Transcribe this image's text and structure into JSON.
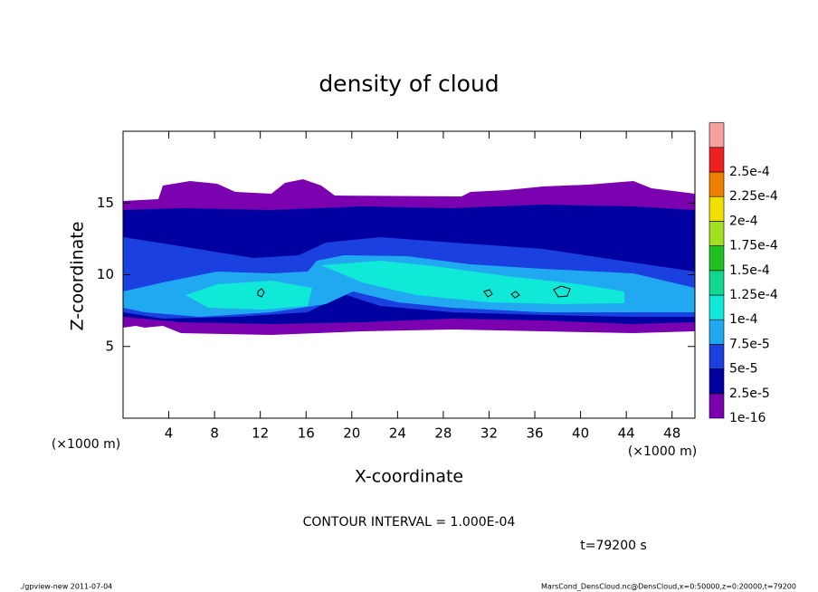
{
  "chart_data": {
    "type": "contour",
    "title": "density of cloud",
    "xlabel": "X-coordinate",
    "ylabel": "Z-coordinate",
    "xunit": "(×1000 m)",
    "xunit2": "(×1000 m)",
    "xlim": [
      0,
      50
    ],
    "xticks": [
      4,
      8,
      12,
      16,
      20,
      24,
      28,
      32,
      36,
      40,
      44,
      48
    ],
    "ylim": [
      0,
      20
    ],
    "yticks": [
      5,
      10,
      15
    ],
    "colorbar": {
      "levels": [
        {
          "value": 1e-16,
          "label": "1e-16"
        },
        {
          "value": 2.5e-05,
          "label": "2.5e-5"
        },
        {
          "value": 5e-05,
          "label": "5e-5"
        },
        {
          "value": 7.5e-05,
          "label": "7.5e-5"
        },
        {
          "value": 0.0001,
          "label": "1e-4"
        },
        {
          "value": 0.000125,
          "label": "1.25e-4"
        },
        {
          "value": 0.00015,
          "label": "1.5e-4"
        },
        {
          "value": 0.000175,
          "label": "1.75e-4"
        },
        {
          "value": 0.0002,
          "label": "2e-4"
        },
        {
          "value": 0.000225,
          "label": "2.25e-4"
        },
        {
          "value": 0.00025,
          "label": "2.5e-4"
        }
      ],
      "colors": [
        "#7a00b0",
        "#0000a0",
        "#1a40e0",
        "#20a8f0",
        "#10e8d8",
        "#10d890",
        "#20c020",
        "#a0e020",
        "#f0e000",
        "#f08000",
        "#f02020",
        "#f8a0a0"
      ]
    },
    "contour_interval": "CONTOUR INTERVAL = 1.000E-04",
    "time": "t=79200 s",
    "footer_left": "./gpview-new   2011-07-04",
    "footer_right": "MarsCond_DensCloud.nc@DensCloud,x=0:50000,z=0:20000,t=79200"
  }
}
